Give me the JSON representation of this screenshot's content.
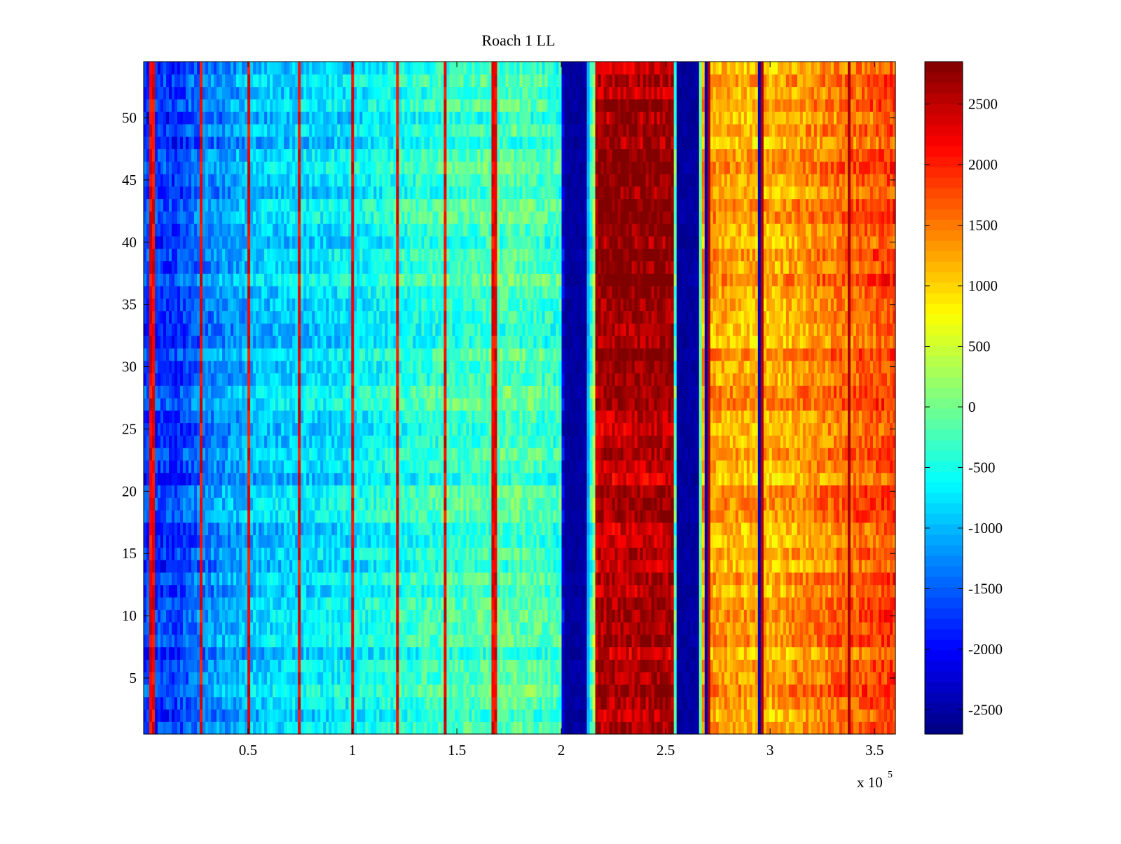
{
  "chart_data": {
    "type": "heatmap",
    "title": "Roach 1 LL",
    "xlabel": "",
    "ylabel": "",
    "x_multiplier_label": "x 10",
    "x_multiplier_exponent": "5",
    "xlim": [
      0,
      3.6
    ],
    "ylim": [
      0.5,
      54.5
    ],
    "n_rows": 54,
    "xticks": [
      {
        "value": 0.5,
        "label": "0.5"
      },
      {
        "value": 1,
        "label": "1"
      },
      {
        "value": 1.5,
        "label": "1.5"
      },
      {
        "value": 2,
        "label": "2"
      },
      {
        "value": 2.5,
        "label": "2.5"
      },
      {
        "value": 3,
        "label": "3"
      },
      {
        "value": 3.5,
        "label": "3.5"
      }
    ],
    "yticks": [
      {
        "value": 5,
        "label": "5"
      },
      {
        "value": 10,
        "label": "10"
      },
      {
        "value": 15,
        "label": "15"
      },
      {
        "value": 20,
        "label": "20"
      },
      {
        "value": 25,
        "label": "25"
      },
      {
        "value": 30,
        "label": "30"
      },
      {
        "value": 35,
        "label": "35"
      },
      {
        "value": 40,
        "label": "40"
      },
      {
        "value": 45,
        "label": "45"
      },
      {
        "value": 50,
        "label": "50"
      }
    ],
    "colorbar": {
      "colormap": "jet",
      "clim": [
        -2700,
        2850
      ],
      "ticks": [
        {
          "value": 2500,
          "label": "2500"
        },
        {
          "value": 2000,
          "label": "2000"
        },
        {
          "value": 1500,
          "label": "1500"
        },
        {
          "value": 1000,
          "label": "1000"
        },
        {
          "value": 500,
          "label": "500"
        },
        {
          "value": 0,
          "label": "0"
        },
        {
          "value": -500,
          "label": "-500"
        },
        {
          "value": -1000,
          "label": "-1000"
        },
        {
          "value": -1500,
          "label": "-1500"
        },
        {
          "value": -2000,
          "label": "-2000"
        },
        {
          "value": -2500,
          "label": "-2500"
        }
      ]
    },
    "x_profile": [
      {
        "x": 0.0,
        "v": -1700
      },
      {
        "x": 0.15,
        "v": -1750
      },
      {
        "x": 0.3,
        "v": -1300
      },
      {
        "x": 0.6,
        "v": -900
      },
      {
        "x": 1.0,
        "v": -700
      },
      {
        "x": 1.2,
        "v": -500
      },
      {
        "x": 1.5,
        "v": -300
      },
      {
        "x": 1.8,
        "v": -200
      },
      {
        "x": 2.0,
        "v": -350
      },
      {
        "x": 2.01,
        "v": -2550
      },
      {
        "x": 2.12,
        "v": -2500
      },
      {
        "x": 2.13,
        "v": -900
      },
      {
        "x": 2.16,
        "v": 300
      },
      {
        "x": 2.17,
        "v": 2500
      },
      {
        "x": 2.54,
        "v": 2550
      },
      {
        "x": 2.55,
        "v": -2550
      },
      {
        "x": 2.66,
        "v": -2500
      },
      {
        "x": 2.67,
        "v": 1300
      },
      {
        "x": 3.0,
        "v": 1150
      },
      {
        "x": 3.3,
        "v": 1500
      },
      {
        "x": 3.6,
        "v": 1800
      }
    ],
    "bright_stripes_x": [
      0.04,
      0.28,
      0.5,
      0.75,
      1.0,
      1.22,
      1.44,
      1.68,
      2.7,
      2.96,
      3.38
    ],
    "dark_stripes_x": [
      0.28,
      1.44,
      1.68,
      2.0,
      2.69,
      2.95
    ]
  }
}
